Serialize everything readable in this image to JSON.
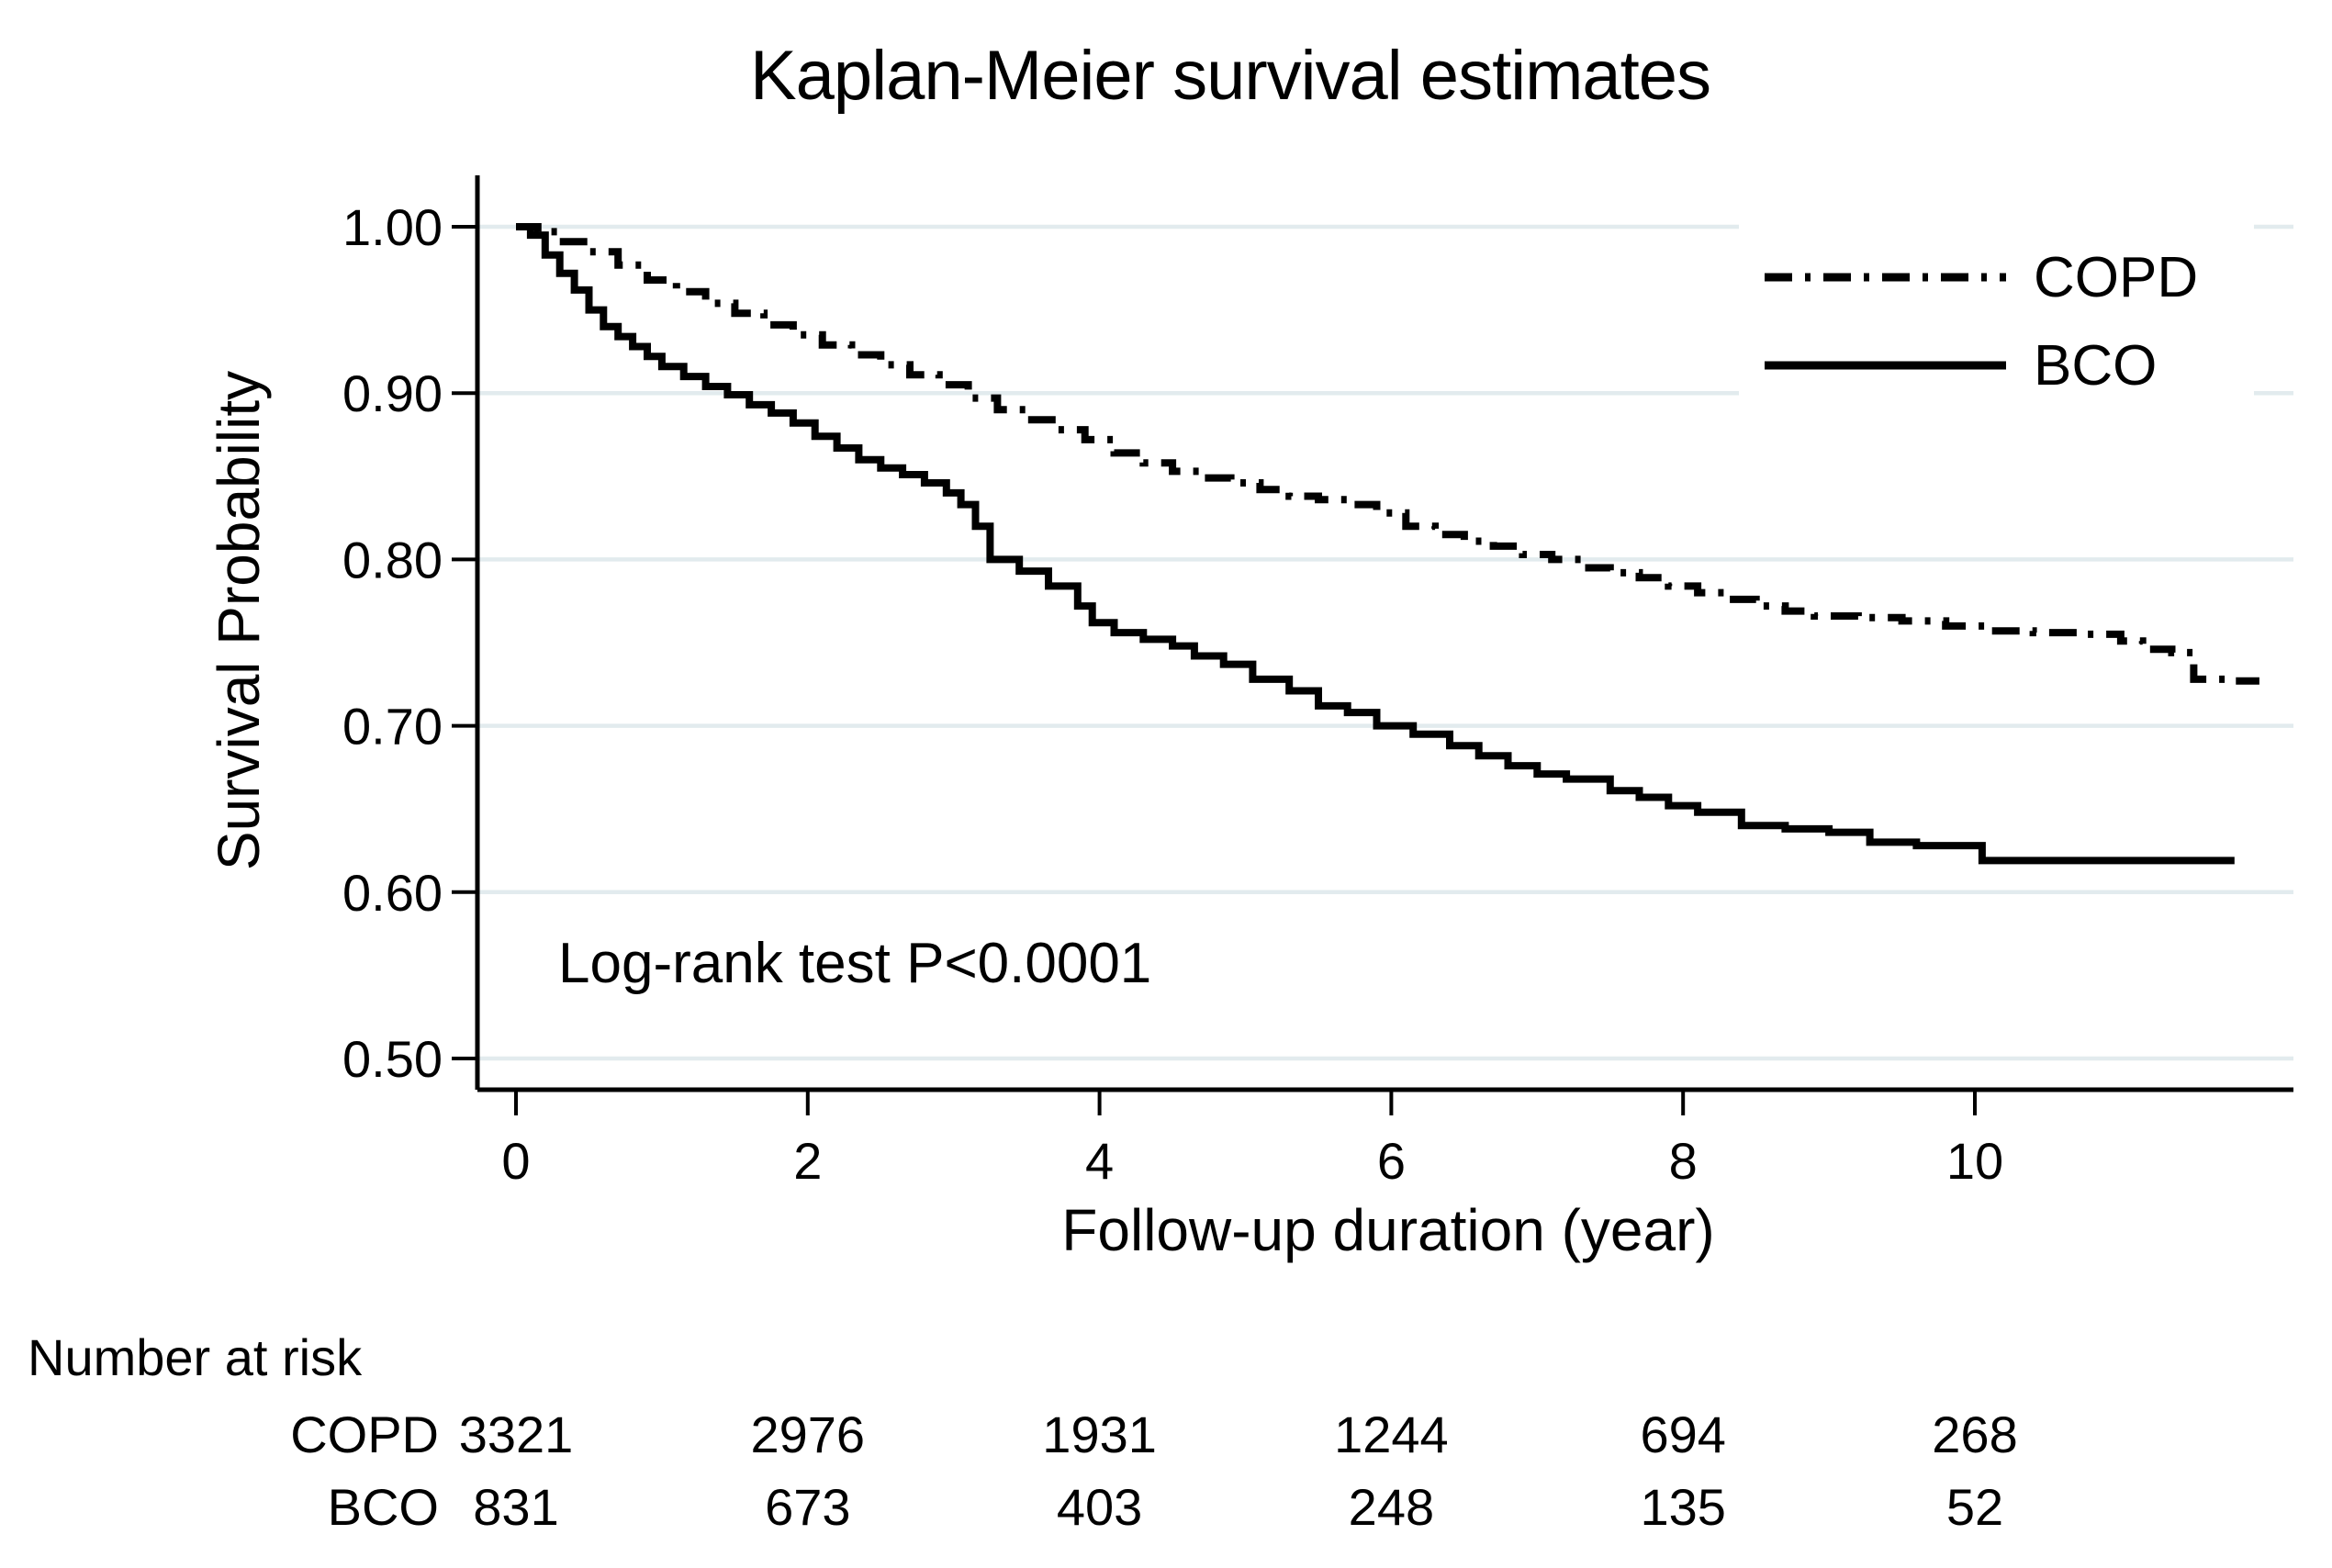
{
  "title": "Kaplan-Meier survival estimates",
  "y_axis": {
    "label": "Survival Probability",
    "ticks": [
      {
        "label": "1.00",
        "value": 1.0
      },
      {
        "label": "0.90",
        "value": 0.9
      },
      {
        "label": "0.80",
        "value": 0.8
      },
      {
        "label": "0.70",
        "value": 0.7
      },
      {
        "label": "0.60",
        "value": 0.6
      },
      {
        "label": "0.50",
        "value": 0.5
      }
    ]
  },
  "x_axis": {
    "label": "Follow-up duration (year)",
    "ticks": [
      {
        "label": "0",
        "value": 0
      },
      {
        "label": "2",
        "value": 2
      },
      {
        "label": "4",
        "value": 4
      },
      {
        "label": "6",
        "value": 6
      },
      {
        "label": "8",
        "value": 8
      },
      {
        "label": "10",
        "value": 10
      }
    ]
  },
  "annotation": "Log-rank test P<0.0001",
  "legend": [
    {
      "label": "COPD",
      "line_style": "dash-dot"
    },
    {
      "label": "BCO",
      "line_style": "solid"
    }
  ],
  "risk_table": {
    "header": "Number at risk",
    "years": [
      0,
      2,
      4,
      6,
      8,
      10
    ],
    "rows": [
      {
        "label": "COPD",
        "counts": [
          3321,
          2976,
          1931,
          1244,
          694,
          268
        ]
      },
      {
        "label": "BCO",
        "counts": [
          831,
          673,
          403,
          248,
          135,
          52
        ]
      }
    ]
  },
  "colors": {
    "line": "#000000",
    "grid": "#e2ebee",
    "background": "#ffffff",
    "text": "#000000"
  },
  "chart_data": {
    "type": "line",
    "title": "Kaplan-Meier survival estimates",
    "xlabel": "Follow-up duration (year)",
    "ylabel": "Survival Probability",
    "xlim": [
      0,
      12.2
    ],
    "ylim": [
      0.5,
      1.0
    ],
    "x_ticks": [
      0,
      2,
      4,
      6,
      8,
      10
    ],
    "y_ticks": [
      0.5,
      0.6,
      0.7,
      0.8,
      0.9,
      1.0
    ],
    "grid": "horizontal",
    "legend_position": "top-right",
    "annotation": "Log-rank test P<0.0001",
    "step_interpolation": true,
    "series": [
      {
        "name": "COPD",
        "line_style": "dash-dot",
        "color": "#000000",
        "points": [
          [
            0,
            1.0
          ],
          [
            0.15,
            0.997
          ],
          [
            0.3,
            0.991
          ],
          [
            0.5,
            0.985
          ],
          [
            0.7,
            0.977
          ],
          [
            0.9,
            0.968
          ],
          [
            1.1,
            0.961
          ],
          [
            1.3,
            0.954
          ],
          [
            1.5,
            0.948
          ],
          [
            1.7,
            0.941
          ],
          [
            1.9,
            0.935
          ],
          [
            2.1,
            0.929
          ],
          [
            2.3,
            0.923
          ],
          [
            2.5,
            0.917
          ],
          [
            2.7,
            0.911
          ],
          [
            2.9,
            0.905
          ],
          [
            3.1,
            0.897
          ],
          [
            3.3,
            0.89
          ],
          [
            3.5,
            0.884
          ],
          [
            3.7,
            0.878
          ],
          [
            3.9,
            0.872
          ],
          [
            4.1,
            0.864
          ],
          [
            4.3,
            0.858
          ],
          [
            4.5,
            0.853
          ],
          [
            4.7,
            0.849
          ],
          [
            4.9,
            0.846
          ],
          [
            5.1,
            0.842
          ],
          [
            5.3,
            0.838
          ],
          [
            5.5,
            0.836
          ],
          [
            5.7,
            0.833
          ],
          [
            5.9,
            0.828
          ],
          [
            6.1,
            0.82
          ],
          [
            6.3,
            0.815
          ],
          [
            6.5,
            0.811
          ],
          [
            6.7,
            0.808
          ],
          [
            6.9,
            0.803
          ],
          [
            7.1,
            0.8
          ],
          [
            7.3,
            0.795
          ],
          [
            7.5,
            0.792
          ],
          [
            7.7,
            0.789
          ],
          [
            7.9,
            0.784
          ],
          [
            8.1,
            0.78
          ],
          [
            8.3,
            0.776
          ],
          [
            8.5,
            0.772
          ],
          [
            8.7,
            0.769
          ],
          [
            8.9,
            0.766
          ],
          [
            9.2,
            0.765
          ],
          [
            9.5,
            0.763
          ],
          [
            9.8,
            0.76
          ],
          [
            10.1,
            0.757
          ],
          [
            10.4,
            0.756
          ],
          [
            10.7,
            0.755
          ],
          [
            11.0,
            0.751
          ],
          [
            11.15,
            0.746
          ],
          [
            11.35,
            0.744
          ],
          [
            11.5,
            0.728
          ],
          [
            11.75,
            0.727
          ],
          [
            11.95,
            0.727
          ]
        ]
      },
      {
        "name": "BCO",
        "line_style": "solid",
        "color": "#000000",
        "points": [
          [
            0,
            1.0
          ],
          [
            0.1,
            0.995
          ],
          [
            0.2,
            0.983
          ],
          [
            0.3,
            0.972
          ],
          [
            0.4,
            0.962
          ],
          [
            0.5,
            0.95
          ],
          [
            0.6,
            0.94
          ],
          [
            0.7,
            0.934
          ],
          [
            0.8,
            0.928
          ],
          [
            0.9,
            0.922
          ],
          [
            1.0,
            0.916
          ],
          [
            1.15,
            0.91
          ],
          [
            1.3,
            0.904
          ],
          [
            1.45,
            0.899
          ],
          [
            1.6,
            0.893
          ],
          [
            1.75,
            0.888
          ],
          [
            1.9,
            0.882
          ],
          [
            2.05,
            0.874
          ],
          [
            2.2,
            0.867
          ],
          [
            2.35,
            0.86
          ],
          [
            2.5,
            0.855
          ],
          [
            2.65,
            0.851
          ],
          [
            2.8,
            0.846
          ],
          [
            2.95,
            0.84
          ],
          [
            3.05,
            0.833
          ],
          [
            3.15,
            0.82
          ],
          [
            3.25,
            0.8
          ],
          [
            3.45,
            0.793
          ],
          [
            3.65,
            0.784
          ],
          [
            3.85,
            0.772
          ],
          [
            3.95,
            0.762
          ],
          [
            4.1,
            0.756
          ],
          [
            4.3,
            0.752
          ],
          [
            4.5,
            0.748
          ],
          [
            4.65,
            0.742
          ],
          [
            4.85,
            0.737
          ],
          [
            5.05,
            0.728
          ],
          [
            5.3,
            0.721
          ],
          [
            5.5,
            0.712
          ],
          [
            5.7,
            0.708
          ],
          [
            5.9,
            0.7
          ],
          [
            6.15,
            0.695
          ],
          [
            6.4,
            0.688
          ],
          [
            6.6,
            0.682
          ],
          [
            6.8,
            0.676
          ],
          [
            7.0,
            0.671
          ],
          [
            7.2,
            0.668
          ],
          [
            7.5,
            0.661
          ],
          [
            7.7,
            0.657
          ],
          [
            7.9,
            0.652
          ],
          [
            8.1,
            0.648
          ],
          [
            8.4,
            0.64
          ],
          [
            8.7,
            0.638
          ],
          [
            9.0,
            0.636
          ],
          [
            9.28,
            0.63
          ],
          [
            9.6,
            0.628
          ],
          [
            10.05,
            0.619
          ],
          [
            10.5,
            0.619
          ],
          [
            11.0,
            0.619
          ],
          [
            11.78,
            0.619
          ]
        ]
      }
    ]
  }
}
